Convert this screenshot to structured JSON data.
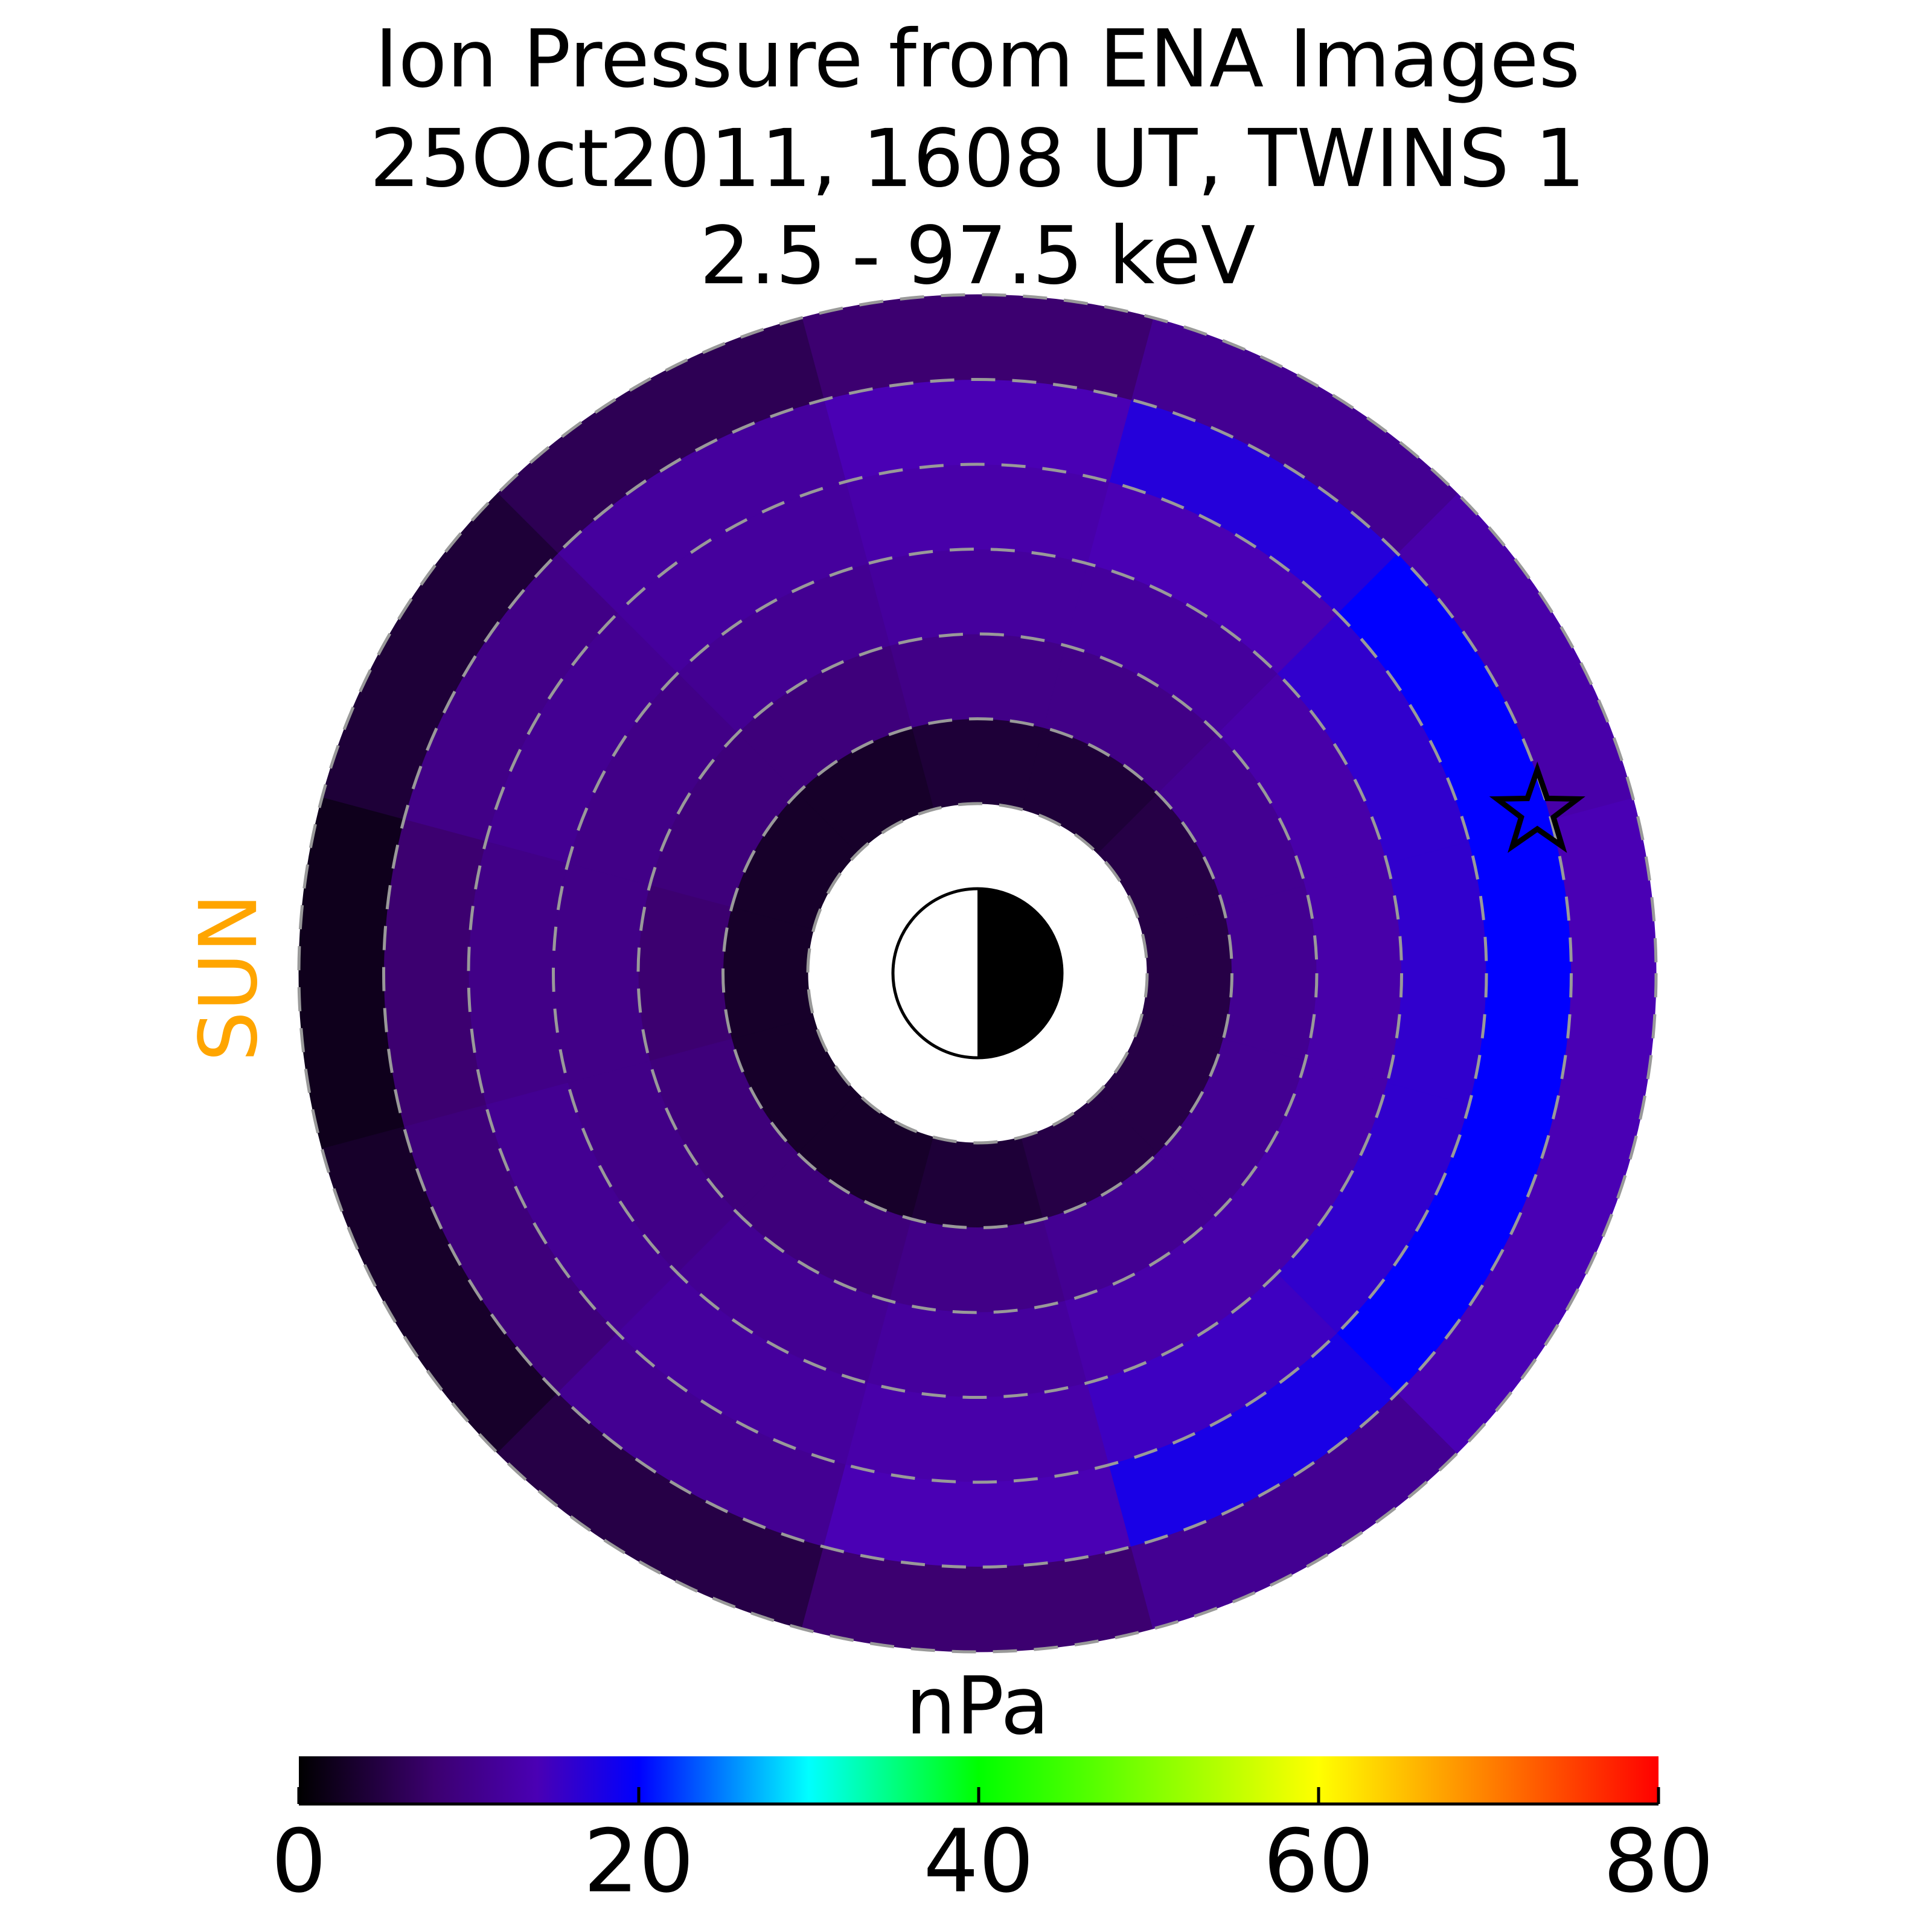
{
  "chart_data": {
    "type": "polar_heatmap",
    "title_lines": [
      "Ion Pressure from  ENA Images",
      "25Oct2011, 1608 UT,  TWINS 1",
      "2.5 - 97.5 keV"
    ],
    "sun_label": "SUN",
    "colorbar_label": "nPa",
    "clim": [
      0,
      80
    ],
    "cticks": [
      0,
      20,
      40,
      60,
      80
    ],
    "colormap": [
      {
        "value": 0,
        "color": "#000000"
      },
      {
        "value": 8,
        "color": "#3c0070"
      },
      {
        "value": 14,
        "color": "#4a00b4"
      },
      {
        "value": 20,
        "color": "#0000ff"
      },
      {
        "value": 30,
        "color": "#00ffff"
      },
      {
        "value": 40,
        "color": "#00ff00"
      },
      {
        "value": 60,
        "color": "#ffff00"
      },
      {
        "value": 70,
        "color": "#ff8000"
      },
      {
        "value": 80,
        "color": "#ff0000"
      }
    ],
    "r_edges": [
      2,
      3,
      4,
      5,
      6,
      7,
      8
    ],
    "angle_centers": [
      0,
      30,
      60,
      90,
      120,
      150,
      180,
      210,
      240,
      270,
      300,
      330
    ],
    "values": [
      [
        5,
        5,
        4,
        4,
        3,
        3,
        3,
        3,
        3,
        4,
        5,
        5
      ],
      [
        11,
        11,
        10,
        10,
        9,
        9,
        8,
        9,
        9,
        10,
        11,
        11
      ],
      [
        13,
        13,
        12,
        12,
        11,
        10,
        10,
        10,
        11,
        12,
        13,
        13
      ],
      [
        16,
        16,
        14,
        13,
        12,
        11,
        10,
        11,
        12,
        13,
        15,
        16
      ],
      [
        20,
        20,
        17,
        14,
        12,
        10,
        8,
        9,
        11,
        14,
        18,
        20
      ],
      [
        14,
        13,
        11,
        8,
        6,
        4,
        2,
        3,
        5,
        8,
        11,
        14
      ]
    ],
    "grid_radii": [
      2,
      3,
      4,
      5,
      6,
      7,
      8
    ],
    "marker_x": 6.6,
    "marker_y": 1.9
  }
}
